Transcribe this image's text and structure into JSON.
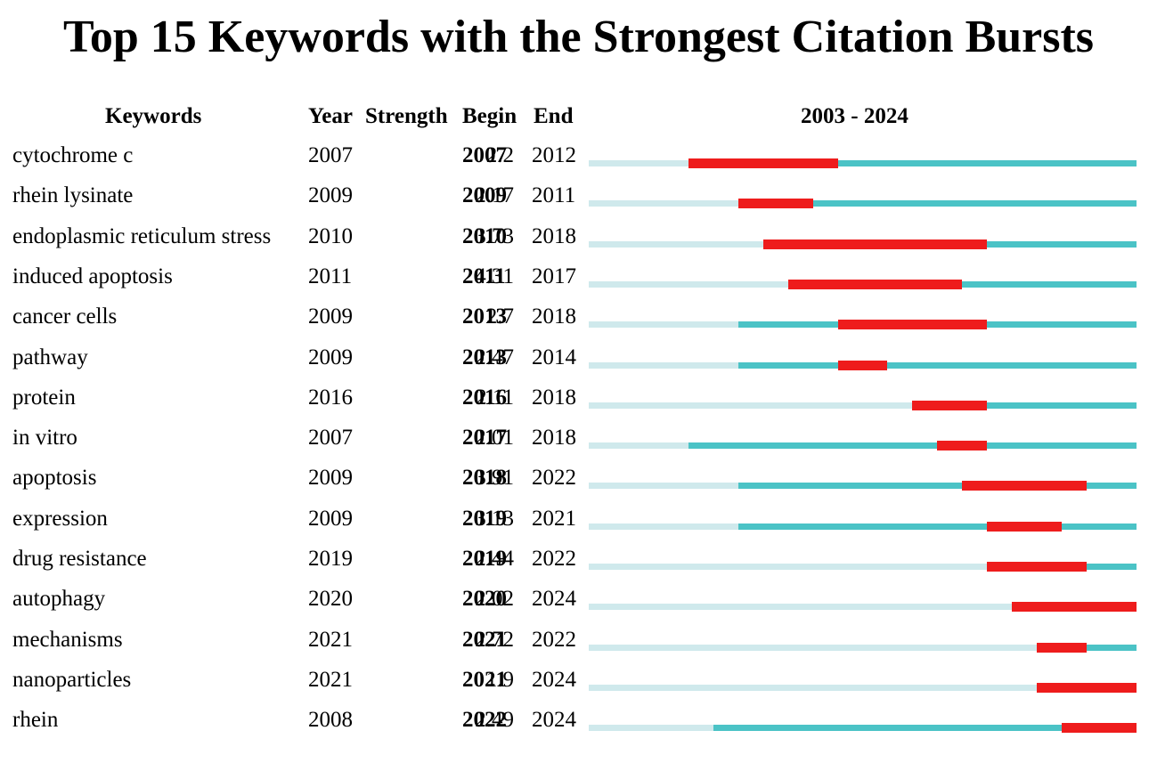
{
  "title": "Top 15 Keywords with the Strongest Citation Bursts",
  "headers": {
    "keywords": "Keywords",
    "year": "Year",
    "strength": "Strength",
    "begin": "Begin",
    "end": "End",
    "range": "2003 - 2024"
  },
  "colors": {
    "before_first_year": "#cfe9ec",
    "active": "#4bc3c6",
    "burst": "#ee1c1c"
  },
  "chart_data": {
    "type": "table",
    "title": "Top 15 Keywords with the Strongest Citation Bursts",
    "period": [
      2003,
      2024
    ],
    "columns": [
      "Keywords",
      "Year",
      "Strength",
      "Begin",
      "End",
      "2003 - 2024"
    ],
    "rows": [
      {
        "keyword": "cytochrome c",
        "year": "2007",
        "strength": "2.2",
        "begin": "2007",
        "end": "2012"
      },
      {
        "keyword": "rhein lysinate",
        "year": "2009",
        "strength": "2.17",
        "begin": "2009",
        "end": "2011"
      },
      {
        "keyword": "endoplasmic reticulum stress",
        "year": "2010",
        "strength": "3.73",
        "begin": "2010",
        "end": "2018"
      },
      {
        "keyword": "induced apoptosis",
        "year": "2011",
        "strength": "4.31",
        "begin": "2011",
        "end": "2017"
      },
      {
        "keyword": "cancer cells",
        "year": "2009",
        "strength": "2.7",
        "begin": "2013",
        "end": "2018"
      },
      {
        "keyword": "pathway",
        "year": "2009",
        "strength": "2.47",
        "begin": "2013",
        "end": "2014"
      },
      {
        "keyword": "protein",
        "year": "2016",
        "strength": "2.11",
        "begin": "2016",
        "end": "2018"
      },
      {
        "keyword": "in vitro",
        "year": "2007",
        "strength": "2.01",
        "begin": "2017",
        "end": "2018"
      },
      {
        "keyword": "apoptosis",
        "year": "2009",
        "strength": "3.91",
        "begin": "2018",
        "end": "2022"
      },
      {
        "keyword": "expression",
        "year": "2009",
        "strength": "3.13",
        "begin": "2019",
        "end": "2021"
      },
      {
        "keyword": "drug resistance",
        "year": "2019",
        "strength": "2.44",
        "begin": "2019",
        "end": "2022"
      },
      {
        "keyword": "autophagy",
        "year": "2020",
        "strength": "2.02",
        "begin": "2020",
        "end": "2024"
      },
      {
        "keyword": "mechanisms",
        "year": "2021",
        "strength": "2.72",
        "begin": "2021",
        "end": "2022"
      },
      {
        "keyword": "nanoparticles",
        "year": "2021",
        "strength": "1.9",
        "begin": "2021",
        "end": "2024"
      },
      {
        "keyword": "rhein",
        "year": "2008",
        "strength": "2.49",
        "begin": "2022",
        "end": "2024"
      }
    ]
  }
}
